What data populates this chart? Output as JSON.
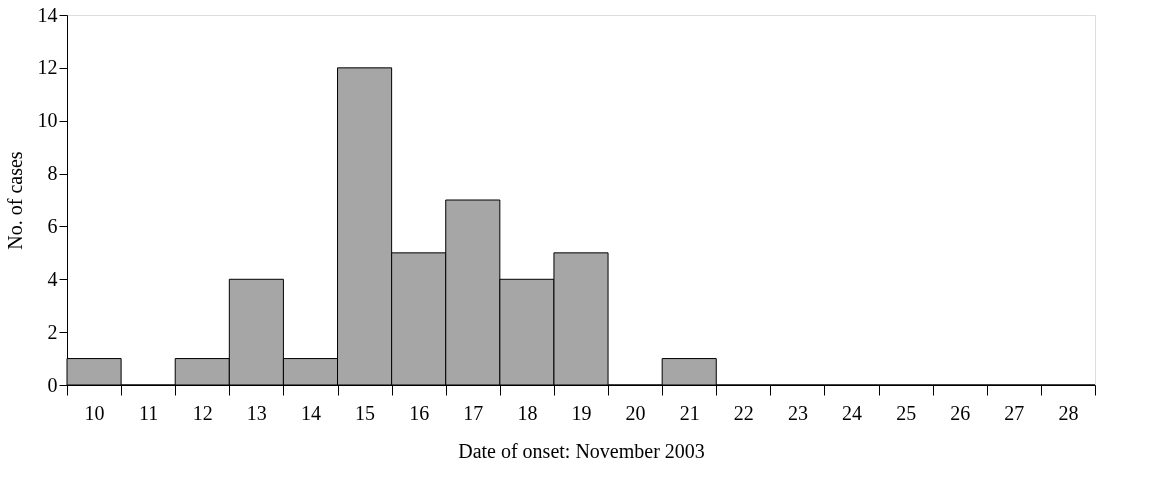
{
  "chart_data": {
    "type": "bar",
    "categories": [
      "10",
      "11",
      "12",
      "13",
      "14",
      "15",
      "16",
      "17",
      "18",
      "19",
      "20",
      "21",
      "22",
      "23",
      "24",
      "25",
      "26",
      "27",
      "28"
    ],
    "values": [
      1,
      0,
      1,
      4,
      1,
      12,
      5,
      7,
      4,
      5,
      0,
      1,
      0,
      0,
      0,
      0,
      0,
      0,
      0
    ],
    "color": "#a6a6a6",
    "xlabel": "Date of onset: November 2003",
    "ylabel": "No. of cases",
    "ylim": [
      0,
      14
    ],
    "yticks": [
      0,
      2,
      4,
      6,
      8,
      10,
      12,
      14
    ],
    "grid": false
  }
}
